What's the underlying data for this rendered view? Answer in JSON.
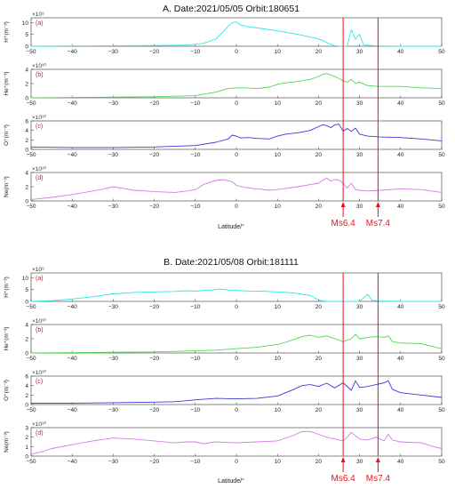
{
  "figure": {
    "xlabel": "Latitude/°",
    "quake_labels": [
      "Ms6.4",
      "Ms7.4"
    ],
    "quake_lats": [
      26,
      34.5
    ],
    "quake_color": "#e8141b"
  },
  "chart_data": [
    {
      "type": "line",
      "title": "A.  Date:2021/05/05    Orbit:180651",
      "xlim": [
        -50,
        50
      ],
      "xticks": [
        -50,
        -40,
        -30,
        -20,
        -10,
        0,
        10,
        20,
        30,
        40,
        50
      ],
      "show_xticklabels": "all",
      "xlabel": "Latitude/°",
      "panels": [
        {
          "letter": "(a)",
          "ylabel": "H⁺(m⁻³)",
          "exponent": "×10⁹",
          "ylim": [
            0,
            12
          ],
          "yticks": [
            0,
            5,
            10
          ],
          "color": "#2ee8e8",
          "x": [
            -50,
            -40,
            -30,
            -20,
            -12,
            -8,
            -5,
            -3,
            -2,
            -1,
            0,
            1,
            3,
            6,
            10,
            15,
            19,
            21,
            22,
            23,
            24,
            25,
            27,
            28,
            29,
            30,
            31,
            35,
            40,
            50
          ],
          "y": [
            0,
            0.1,
            0.2,
            0.3,
            0.5,
            1.2,
            3,
            6.5,
            8.5,
            10,
            10.2,
            9,
            8.2,
            7.5,
            6.5,
            5,
            3.5,
            2.5,
            1.5,
            0.8,
            0.2,
            0.05,
            0.05,
            7,
            3,
            5,
            0.5,
            0.1,
            0,
            0
          ]
        },
        {
          "letter": "(b)",
          "ylabel": "He⁺(m⁻³)",
          "exponent": "×10¹⁰",
          "ylim": [
            0,
            4
          ],
          "yticks": [
            0,
            2,
            4
          ],
          "color": "#4ed94e",
          "x": [
            -50,
            -40,
            -30,
            -20,
            -10,
            -5,
            -2,
            0,
            2,
            5,
            8,
            10,
            12,
            15,
            18,
            20,
            21,
            22,
            23,
            24,
            25,
            26,
            27,
            28,
            29,
            30,
            32,
            35,
            40,
            45,
            50
          ],
          "y": [
            0,
            0.05,
            0.1,
            0.15,
            0.3,
            0.8,
            1.3,
            1.4,
            1.4,
            1.3,
            1.5,
            1.9,
            2.1,
            2.3,
            2.6,
            3.0,
            3.3,
            3.4,
            3.2,
            3.0,
            2.7,
            2.4,
            2.2,
            2.6,
            2.0,
            2.2,
            1.7,
            1.6,
            1.6,
            1.4,
            1.3
          ]
        },
        {
          "letter": "(c)",
          "ylabel": "O⁺(m⁻³)",
          "exponent": "×10¹⁰",
          "ylim": [
            0,
            6
          ],
          "yticks": [
            0,
            2,
            4,
            6
          ],
          "color": "#3838d8",
          "x": [
            -50,
            -40,
            -30,
            -20,
            -10,
            -5,
            -2,
            -1,
            0,
            1,
            3,
            5,
            8,
            10,
            12,
            15,
            18,
            20,
            21,
            22,
            23,
            24,
            25,
            26,
            27,
            28,
            29,
            30,
            32,
            35,
            40,
            45,
            50
          ],
          "y": [
            0.5,
            0.4,
            0.4,
            0.5,
            0.8,
            1.5,
            2.2,
            3,
            2.8,
            2.4,
            2.5,
            2.3,
            2.2,
            2.8,
            3.2,
            3.5,
            4.0,
            4.8,
            5.2,
            5.0,
            4.6,
            5.2,
            5.3,
            3.8,
            4.4,
            3.8,
            4.5,
            3.2,
            2.8,
            2.6,
            2.5,
            2.2,
            1.8
          ]
        },
        {
          "letter": "(d)",
          "ylabel": "Ne(m⁻³)",
          "exponent": "×10¹⁰",
          "ylim": [
            0,
            4
          ],
          "yticks": [
            0,
            2,
            4
          ],
          "color": "#d27de6",
          "x": [
            -50,
            -45,
            -40,
            -35,
            -33,
            -30,
            -28,
            -25,
            -22,
            -20,
            -15,
            -12,
            -10,
            -8,
            -5,
            -3,
            -1,
            0,
            2,
            5,
            8,
            10,
            15,
            18,
            20,
            21,
            22,
            23,
            24,
            25,
            26,
            27,
            28,
            29,
            30,
            32,
            35,
            40,
            45,
            50
          ],
          "y": [
            0.2,
            0.5,
            0.9,
            1.4,
            1.6,
            2.0,
            1.8,
            1.5,
            1.4,
            1.3,
            1.2,
            1.4,
            1.6,
            2.3,
            2.9,
            3.0,
            2.7,
            2.2,
            1.9,
            1.7,
            1.5,
            1.6,
            2.0,
            2.3,
            2.5,
            2.9,
            3.2,
            2.8,
            3.0,
            2.9,
            2.5,
            1.8,
            2.5,
            1.6,
            1.5,
            1.4,
            1.5,
            1.7,
            1.6,
            1.2
          ]
        }
      ]
    },
    {
      "type": "line",
      "title": "B.  Date:2021/05/08    Orbit:181111",
      "xlim": [
        -50,
        50
      ],
      "xticks": [
        -50,
        -40,
        -30,
        -20,
        -10,
        0,
        10,
        20,
        30,
        40,
        50
      ],
      "show_xticklabels": "all",
      "xlabel": "Latitude/°",
      "panels": [
        {
          "letter": "(a)",
          "ylabel": "H⁺(m⁻³)",
          "exponent": "×10⁹",
          "ylim": [
            0,
            12
          ],
          "yticks": [
            0,
            5,
            10
          ],
          "color": "#2ee8e8",
          "x": [
            -50,
            -45,
            -40,
            -35,
            -30,
            -25,
            -20,
            -15,
            -12,
            -10,
            -8,
            -6,
            -4,
            -2,
            0,
            3,
            6,
            10,
            14,
            16,
            18,
            19,
            20,
            21,
            22,
            25,
            30,
            31,
            32,
            33,
            35,
            40,
            50
          ],
          "y": [
            0,
            0.3,
            1.0,
            2.0,
            3.2,
            3.8,
            4.0,
            4.2,
            4.5,
            4.3,
            4.6,
            4.8,
            5.2,
            4.8,
            4.6,
            4.4,
            4.3,
            4.0,
            3.6,
            3.0,
            2.5,
            1.5,
            0.7,
            0.2,
            0,
            0,
            0,
            1.5,
            3,
            0.5,
            0.1,
            0,
            0
          ]
        },
        {
          "letter": "(b)",
          "ylabel": "He⁺(m⁻³)",
          "exponent": "×10¹⁰",
          "ylim": [
            0,
            4
          ],
          "yticks": [
            0,
            2,
            4
          ],
          "color": "#4ed94e",
          "x": [
            -50,
            -40,
            -30,
            -20,
            -10,
            -5,
            0,
            5,
            10,
            12,
            14,
            16,
            18,
            20,
            22,
            24,
            26,
            28,
            29,
            30,
            32,
            34,
            36,
            37,
            38,
            40,
            45,
            50
          ],
          "y": [
            0,
            0.05,
            0.1,
            0.15,
            0.3,
            0.4,
            0.6,
            0.8,
            1.2,
            1.5,
            1.9,
            2.3,
            2.5,
            2.2,
            2.4,
            2.0,
            1.6,
            2.0,
            2.6,
            2.0,
            2.2,
            2.3,
            2.2,
            2.4,
            1.6,
            1.4,
            1.3,
            0.6
          ]
        },
        {
          "letter": "(c)",
          "ylabel": "O⁺(m⁻³)",
          "exponent": "×10¹⁰",
          "ylim": [
            0,
            6
          ],
          "yticks": [
            0,
            2,
            4,
            6
          ],
          "color": "#3838d8",
          "x": [
            -50,
            -40,
            -30,
            -20,
            -15,
            -12,
            -10,
            -5,
            0,
            5,
            10,
            12,
            14,
            16,
            18,
            20,
            22,
            24,
            26,
            28,
            29,
            30,
            32,
            34,
            36,
            37,
            38,
            40,
            45,
            50
          ],
          "y": [
            0.3,
            0.3,
            0.4,
            0.5,
            0.6,
            0.8,
            1.0,
            1.3,
            1.2,
            1.3,
            1.8,
            2.5,
            3.2,
            4.0,
            4.2,
            3.8,
            4.5,
            3.5,
            4.6,
            3.0,
            5.0,
            3.6,
            3.8,
            4.2,
            4.6,
            5.0,
            3.2,
            2.5,
            2.0,
            1.5
          ]
        },
        {
          "letter": "(d)",
          "ylabel": "Ne(m⁻³)",
          "exponent": "×10¹⁰",
          "ylim": [
            0,
            3
          ],
          "yticks": [
            0,
            1,
            2,
            3
          ],
          "color": "#d27de6",
          "x": [
            -50,
            -47,
            -45,
            -40,
            -35,
            -30,
            -25,
            -20,
            -15,
            -12,
            -10,
            -8,
            -5,
            0,
            5,
            10,
            14,
            16,
            18,
            20,
            22,
            24,
            26,
            27,
            28,
            30,
            32,
            34,
            36,
            37,
            38,
            40,
            45,
            48,
            50
          ],
          "y": [
            0.2,
            0.5,
            0.8,
            1.2,
            1.6,
            1.9,
            1.8,
            1.6,
            1.4,
            1.5,
            1.5,
            1.3,
            1.5,
            1.4,
            1.5,
            1.6,
            2.2,
            2.6,
            2.6,
            2.3,
            2.0,
            1.8,
            1.6,
            2.0,
            2.5,
            1.8,
            1.7,
            2.0,
            1.6,
            2.3,
            1.7,
            1.5,
            1.4,
            1.0,
            0.8
          ]
        }
      ]
    }
  ]
}
